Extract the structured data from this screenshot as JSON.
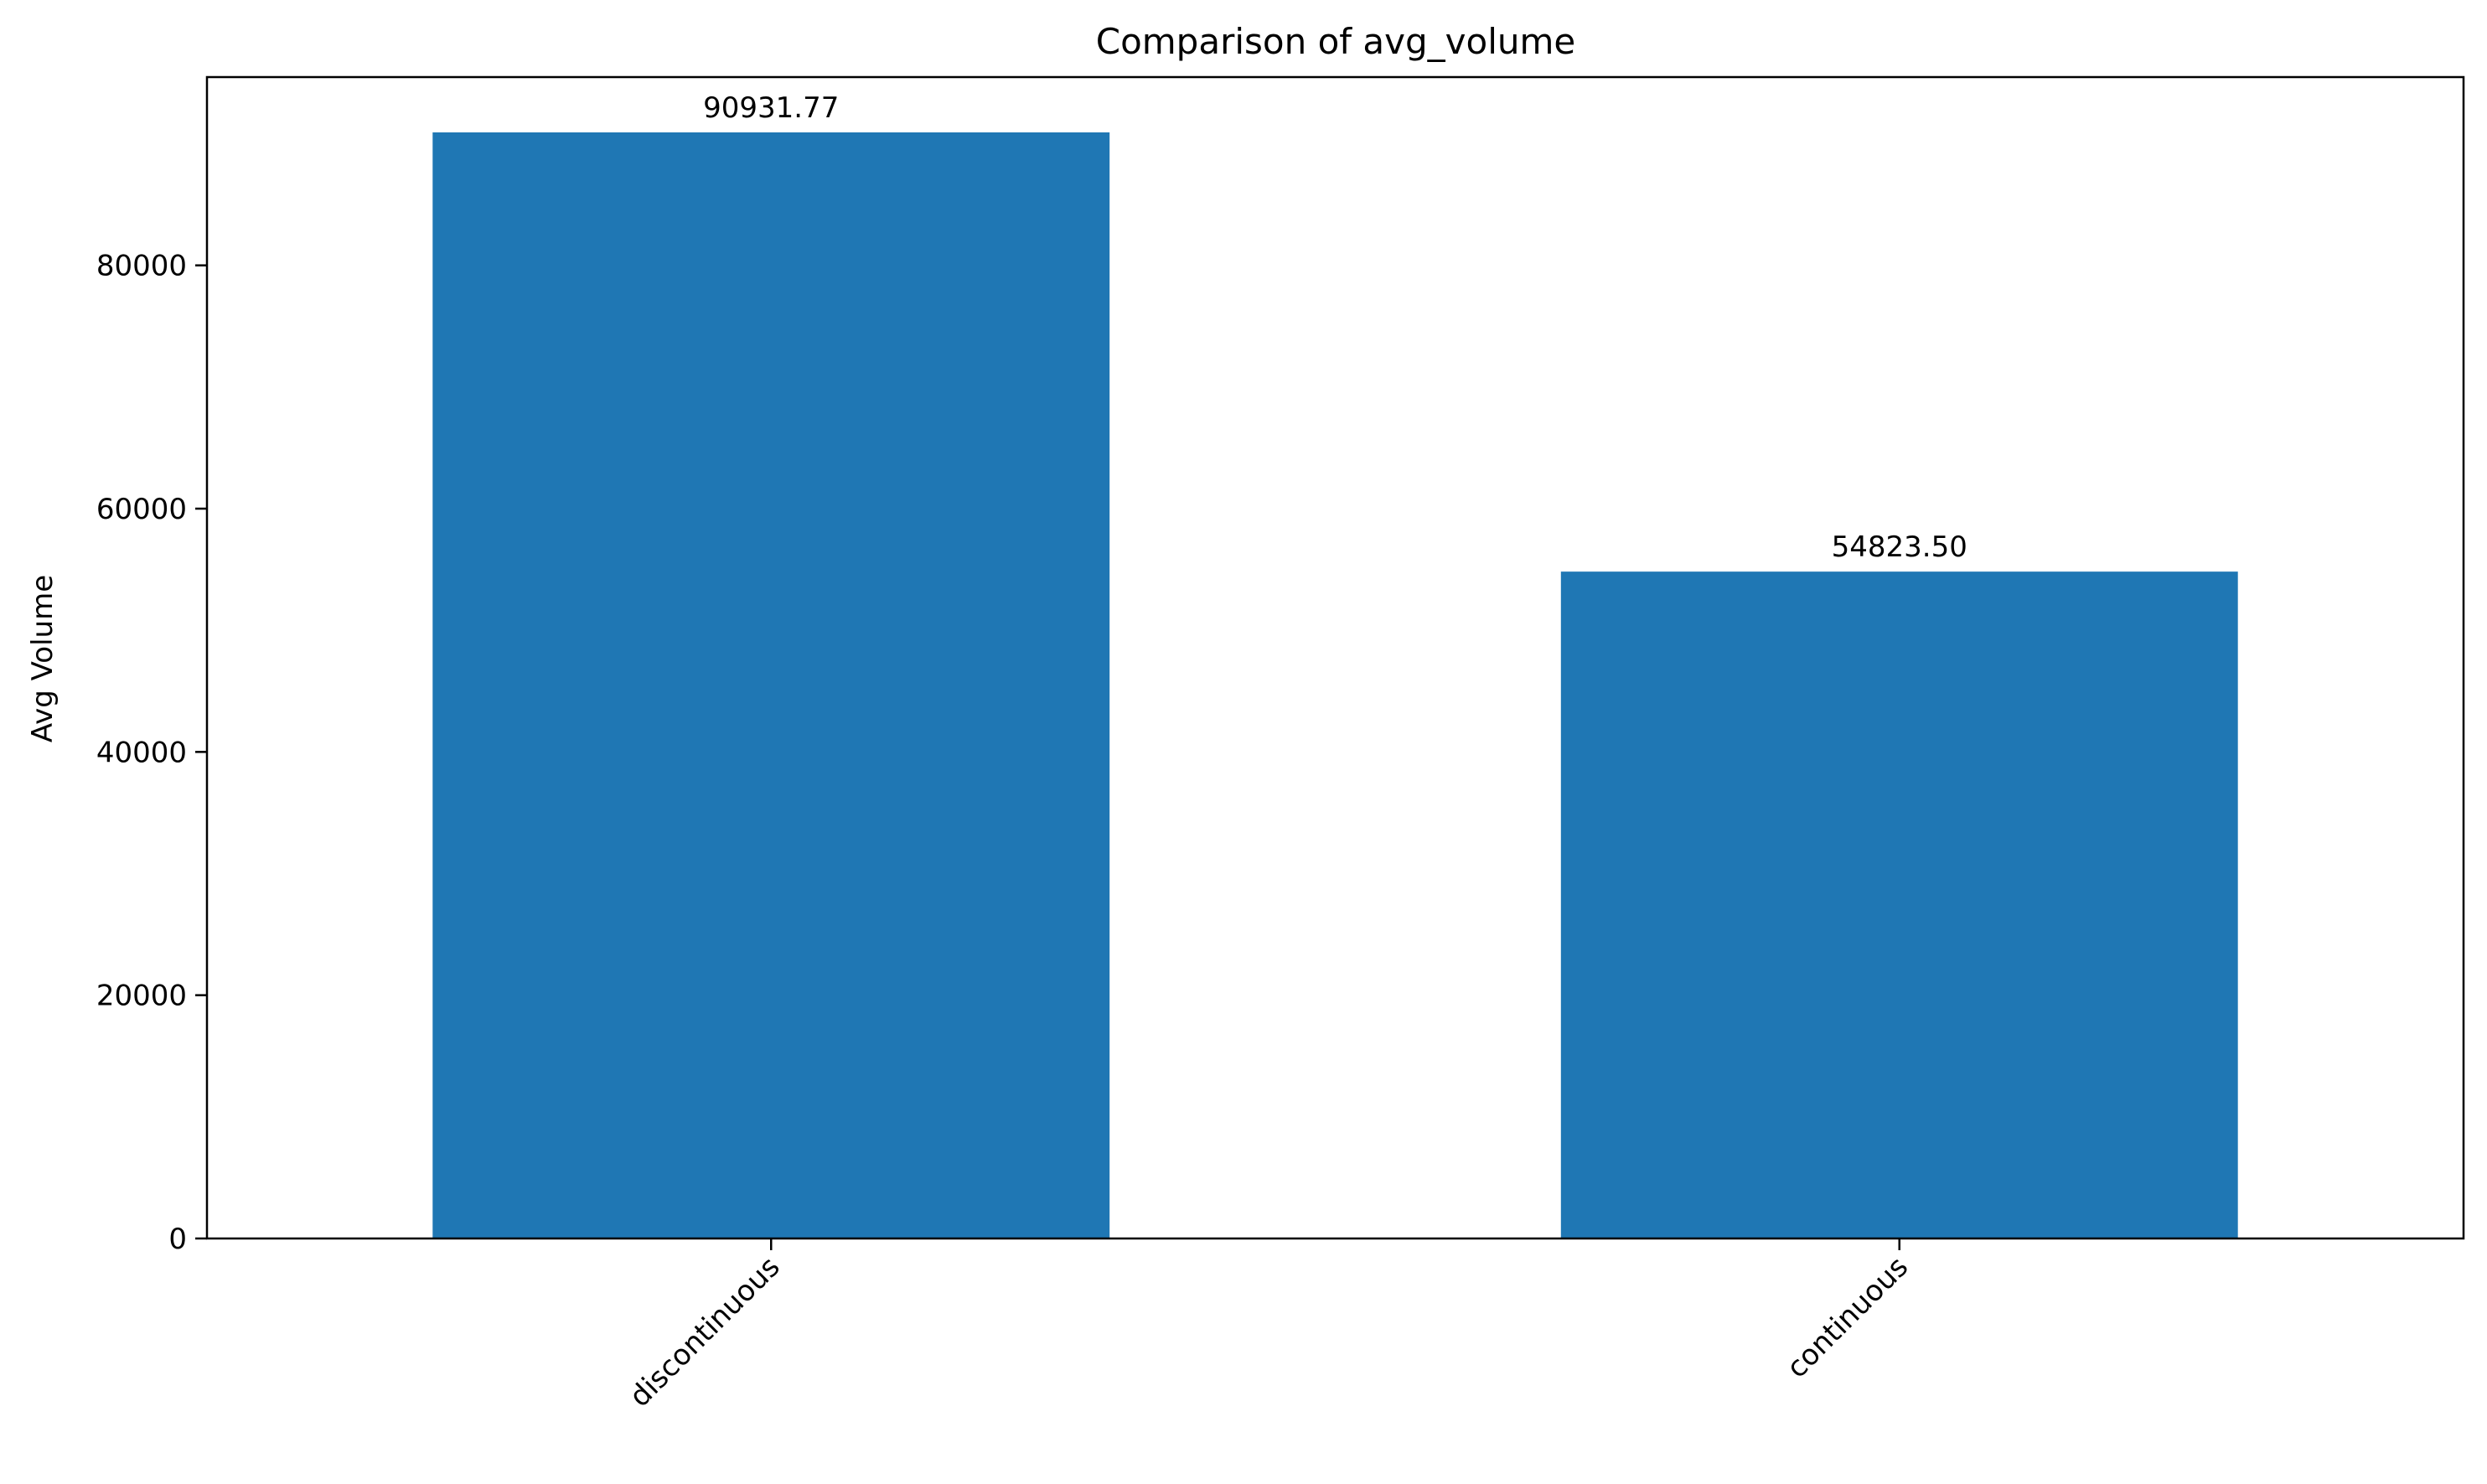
{
  "chart_data": {
    "type": "bar",
    "title": "Comparison of avg_volume",
    "xlabel": "",
    "ylabel": "Avg Volume",
    "categories": [
      "discontinuous",
      "continuous"
    ],
    "values": [
      90931.77,
      54823.5
    ],
    "value_labels": [
      "90931.77",
      "54823.50"
    ],
    "ylim": [
      0,
      95478.36
    ],
    "yticks": [
      0,
      20000,
      40000,
      60000,
      80000
    ],
    "ytick_labels": [
      "0",
      "20000",
      "40000",
      "60000",
      "80000"
    ],
    "bar_color": "#1f77b4",
    "grid": false,
    "legend": "none",
    "xtick_rotation": "45-degree, right-aligned"
  }
}
